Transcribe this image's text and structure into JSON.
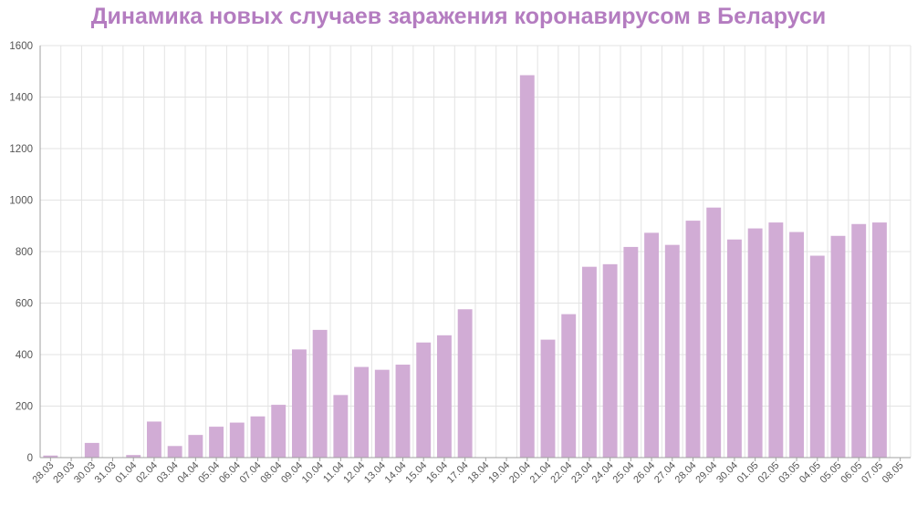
{
  "chart_data": {
    "type": "bar",
    "title": "Динамика новых случаев заражения коронавирусом в Беларуси",
    "xlabel": "",
    "ylabel": "",
    "ylim": [
      0,
      1600
    ],
    "yticks": [
      0,
      200,
      400,
      600,
      800,
      1000,
      1200,
      1400,
      1600
    ],
    "grid": true,
    "legend": "none",
    "colors": {
      "title": "#b47cc0",
      "bar": "#d1acd5",
      "grid": "#e3e3e3",
      "axis": "#a0a0a0"
    },
    "categories": [
      "28.03",
      "29.03",
      "30.03",
      "31.03",
      "01.04",
      "02.04",
      "03.04",
      "04.04",
      "05.04",
      "06.04",
      "07.04",
      "08.04",
      "09.04",
      "10.04",
      "11.04",
      "12.04",
      "13.04",
      "14.04",
      "15.04",
      "16.04",
      "17.04",
      "18.04",
      "19.04",
      "20.04",
      "21.04",
      "22.04",
      "23.04",
      "24.04",
      "25.04",
      "26.04",
      "27.04",
      "28.04",
      "29.04",
      "30.04",
      "01.05",
      "02.05",
      "03.05",
      "04.05",
      "05.05",
      "06.05",
      "07.05",
      "08.05"
    ],
    "values": [
      8,
      0,
      57,
      0,
      10,
      140,
      45,
      88,
      120,
      136,
      160,
      205,
      420,
      496,
      243,
      352,
      341,
      361,
      447,
      475,
      576,
      0,
      0,
      1485,
      458,
      557,
      741,
      751,
      818,
      873,
      826,
      920,
      971,
      847,
      890,
      913,
      876,
      784,
      861,
      907,
      913,
      0
    ]
  }
}
